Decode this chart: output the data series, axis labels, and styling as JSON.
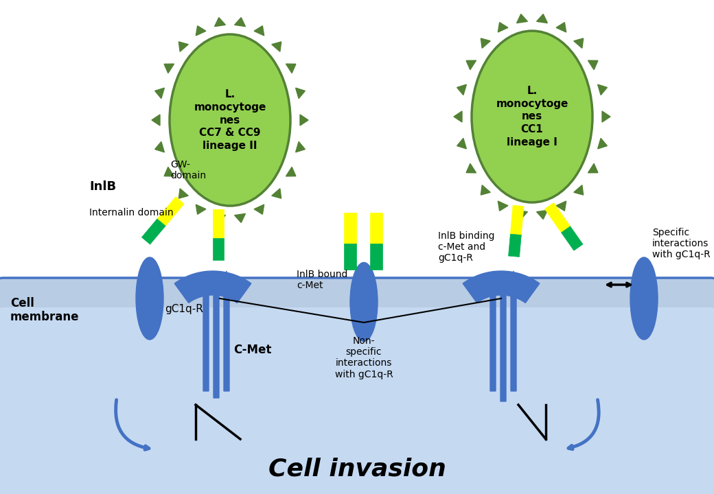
{
  "bg_color": "#ffffff",
  "cell_top_color": "#b8cce4",
  "cell_inner_color": "#c5d9f1",
  "cell_border_color": "#4472c4",
  "bacteria_color": "#92d050",
  "bacteria_border": "#538135",
  "receptor_color": "#4472c4",
  "internalin_yellow": "#ffff00",
  "internalin_green": "#00b050",
  "title": "Cell invasion",
  "bacteria1_label": "L.\nmonocytoge\nnes\nCC7 & CC9\nlineage II",
  "bacteria2_label": "L.\nmonocytoge\nnes\nCC1\nlineage I",
  "label_InlB": "InlB",
  "label_GW": "GW-\ndomain",
  "label_Internalin": "Internalin domain",
  "label_gC1qR": "gC1q-R",
  "label_CMet": "C-Met",
  "label_CellMembrane": "Cell\nmembrane",
  "label_InlBbound": "InlB bound\nc-Met",
  "label_NonSpecific": "Non-\nspecific\ninteractions\nwith gC1q-R",
  "label_InlBbinding": "InlB binding\nc-Met and\ngC1q-R",
  "label_SpecificInteractions": "Specific\ninteractions\nwith gC1q-R"
}
